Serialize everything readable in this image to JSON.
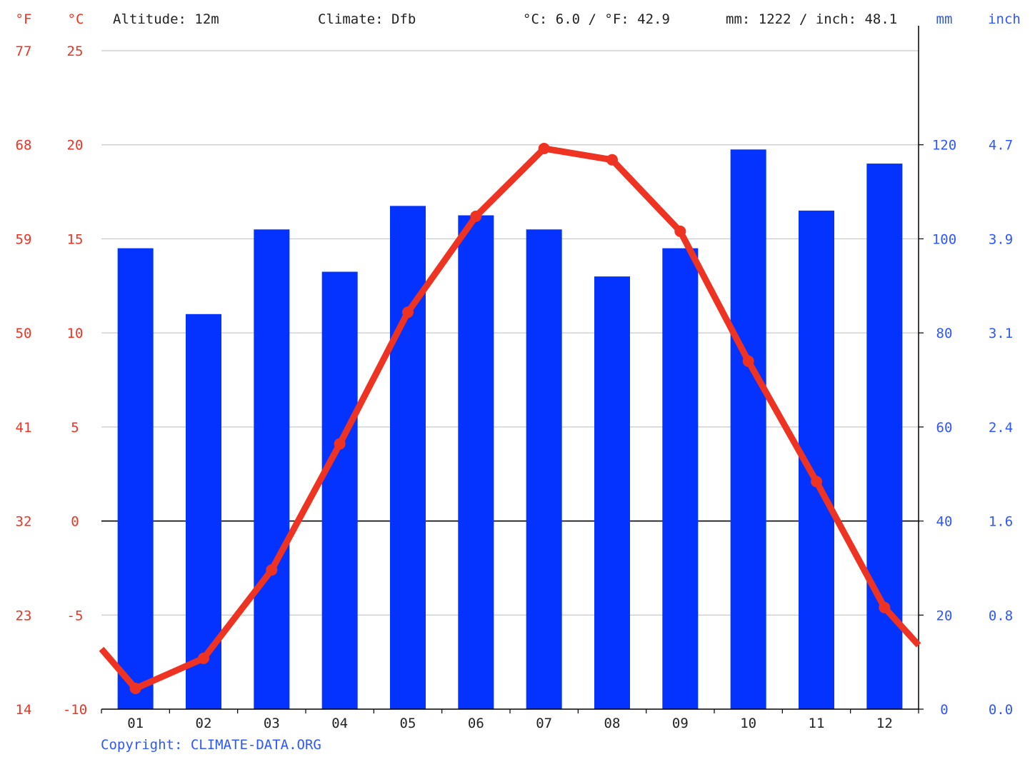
{
  "header": {
    "unit_f": "°F",
    "unit_c": "°C",
    "altitude": "Altitude: 12m",
    "climate": "Climate: Dfb",
    "avg_temp": "°C: 6.0 / °F: 42.9",
    "precip_total": "mm: 1222 / inch: 48.1",
    "unit_mm": "mm",
    "unit_inch": "inch"
  },
  "copyright": "Copyright: CLIMATE-DATA.ORG",
  "colors": {
    "temp": "#ee3322",
    "precip": "#0433ff",
    "precip_label": "#2e57ff",
    "grid": "#c8c8c8",
    "axis": "#000000"
  },
  "axes": {
    "c_ticks": [
      "25",
      "20",
      "15",
      "10",
      "5",
      "0",
      "-5",
      "-10"
    ],
    "c_values": [
      25,
      20,
      15,
      10,
      5,
      0,
      -5,
      -10
    ],
    "f_ticks": [
      "77",
      "68",
      "59",
      "50",
      "41",
      "32",
      "23",
      "14"
    ],
    "mm_ticks": [
      "120",
      "100",
      "80",
      "60",
      "40",
      "20",
      "0"
    ],
    "mm_values": [
      120,
      100,
      80,
      60,
      40,
      20,
      0
    ],
    "inch_ticks": [
      "4.7",
      "3.9",
      "3.1",
      "2.4",
      "1.6",
      "0.8",
      "0.0"
    ]
  },
  "chart_data": {
    "type": "bar",
    "categories": [
      "01",
      "02",
      "03",
      "04",
      "05",
      "06",
      "07",
      "08",
      "09",
      "10",
      "11",
      "12"
    ],
    "series": [
      {
        "type": "bar",
        "axis": "right",
        "unit": "mm",
        "values": [
          98,
          84,
          102,
          93,
          107,
          105,
          102,
          92,
          98,
          119,
          106,
          116
        ]
      },
      {
        "type": "line",
        "axis": "left",
        "unit": "°C",
        "values": [
          -8.9,
          -7.3,
          -2.6,
          4.1,
          11.1,
          16.2,
          19.8,
          19.2,
          15.4,
          8.5,
          2.1,
          -4.6
        ],
        "edge_start": -6.8,
        "edge_end": -6.6
      }
    ],
    "ylim_left": [
      -10,
      25
    ],
    "ylim_right": [
      0,
      140
    ]
  }
}
